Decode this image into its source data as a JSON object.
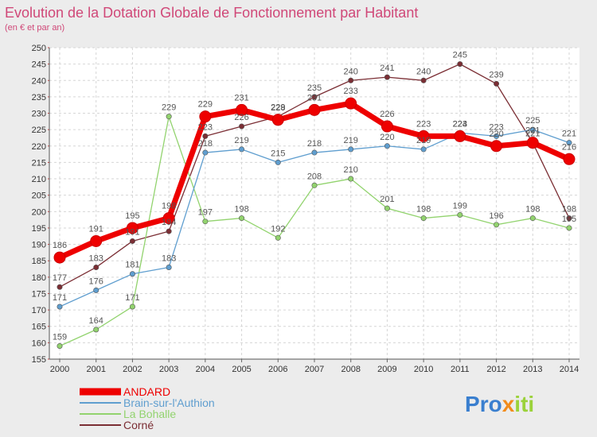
{
  "chart_data": {
    "type": "line",
    "title": "Evolution de la Dotation Globale de Fonctionnement par Habitant",
    "subtitle": "(en € et par an)",
    "xlabel": "",
    "ylabel": "",
    "categories": [
      "2000",
      "2001",
      "2002",
      "2003",
      "2004",
      "2005",
      "2006",
      "2007",
      "2008",
      "2009",
      "2010",
      "2011",
      "2012",
      "2013",
      "2014"
    ],
    "ylim": [
      155,
      250
    ],
    "yticks": [
      155,
      160,
      165,
      170,
      175,
      180,
      185,
      190,
      195,
      200,
      205,
      210,
      215,
      220,
      225,
      230,
      235,
      240,
      245,
      250
    ],
    "grid": true,
    "legend_position": "bottom-left",
    "series": [
      {
        "name": "ANDARD",
        "color": "#ee0000",
        "values": [
          186,
          191,
          195,
          198,
          229,
          231,
          228,
          231,
          233,
          226,
          223,
          223,
          220,
          221,
          216
        ]
      },
      {
        "name": "Brain-sur-l'Authion",
        "color": "#5f9ecf",
        "values": [
          171,
          176,
          181,
          183,
          218,
          219,
          215,
          218,
          219,
          220,
          219,
          224,
          223,
          225,
          221
        ]
      },
      {
        "name": "La Bohalle",
        "color": "#92d36e",
        "values": [
          159,
          164,
          171,
          229,
          197,
          198,
          192,
          208,
          210,
          201,
          198,
          199,
          196,
          198,
          195
        ]
      },
      {
        "name": "Corné",
        "color": "#7b2e34",
        "values": [
          177,
          183,
          191,
          194,
          223,
          226,
          229,
          235,
          240,
          241,
          240,
          245,
          239,
          221,
          198
        ]
      }
    ]
  },
  "brand": {
    "text": "Proxiti",
    "letters": [
      "P",
      "r",
      "o",
      "x",
      "i",
      "t",
      "i"
    ],
    "colors": [
      "#3a7fcf",
      "#3a7fcf",
      "#3a7fcf",
      "#f28c1c",
      "#9bd23a",
      "#9bd23a",
      "#9bd23a"
    ]
  }
}
